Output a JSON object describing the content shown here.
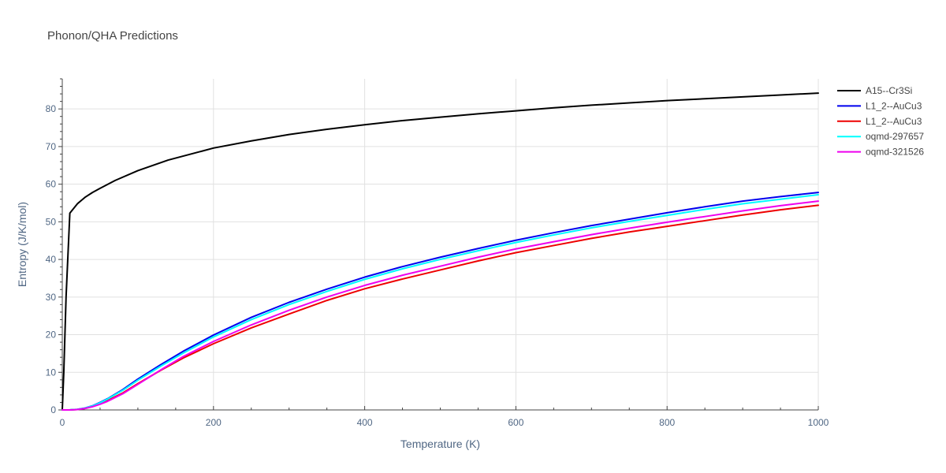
{
  "chart_data": {
    "type": "line",
    "title": "Phonon/QHA Predictions",
    "xlabel": "Temperature (K)",
    "ylabel": "Entropy (J/K/mol)",
    "xlim": [
      0,
      1000
    ],
    "ylim": [
      0,
      88
    ],
    "xticks": [
      "0",
      "200",
      "400",
      "600",
      "800",
      "1000"
    ],
    "yticks": [
      "0",
      "10",
      "20",
      "30",
      "40",
      "50",
      "60",
      "70",
      "80"
    ],
    "grid": true,
    "legend_position": "top-right",
    "series": [
      {
        "name": "A15--Cr3Si",
        "color": "#000000",
        "x": [
          0,
          2,
          5,
          10,
          20,
          30,
          40,
          50,
          70,
          100,
          140,
          200,
          250,
          300,
          350,
          400,
          450,
          500,
          550,
          600,
          650,
          700,
          750,
          800,
          850,
          900,
          950,
          1000
        ],
        "y": [
          0,
          10,
          30,
          52.3,
          54.8,
          56.5,
          57.8,
          58.9,
          61.0,
          63.6,
          66.4,
          69.6,
          71.5,
          73.2,
          74.6,
          75.8,
          76.9,
          77.8,
          78.7,
          79.5,
          80.3,
          81.0,
          81.6,
          82.2,
          82.7,
          83.2,
          83.7,
          84.2
        ]
      },
      {
        "name": "L1_2--AuCu3",
        "color": "#0000ee",
        "x": [
          0,
          10,
          20,
          30,
          40,
          50,
          60,
          80,
          100,
          130,
          160,
          200,
          250,
          300,
          350,
          400,
          450,
          500,
          550,
          600,
          650,
          700,
          750,
          800,
          850,
          900,
          950,
          1000
        ],
        "y": [
          0,
          0.02,
          0.15,
          0.5,
          1.1,
          2.0,
          3.0,
          5.4,
          8.2,
          12.0,
          15.6,
          19.9,
          24.6,
          28.6,
          32.1,
          35.3,
          38.1,
          40.6,
          42.9,
          45.1,
          47.1,
          49.0,
          50.7,
          52.4,
          54.0,
          55.5,
          56.7,
          57.8
        ]
      },
      {
        "name": "L1_2--AuCu3",
        "color": "#ee0000",
        "x": [
          0,
          10,
          20,
          30,
          40,
          50,
          60,
          80,
          100,
          130,
          160,
          200,
          250,
          300,
          350,
          400,
          450,
          500,
          550,
          600,
          650,
          700,
          750,
          800,
          850,
          900,
          950,
          1000
        ],
        "y": [
          0,
          0.01,
          0.1,
          0.4,
          0.9,
          1.6,
          2.5,
          4.5,
          7.0,
          10.5,
          13.8,
          17.6,
          21.8,
          25.5,
          29.1,
          32.2,
          34.8,
          37.2,
          39.6,
          41.8,
          43.7,
          45.6,
          47.3,
          48.8,
          50.3,
          51.8,
          53.2,
          54.4
        ]
      },
      {
        "name": "oqmd-297657",
        "color": "#00ffff",
        "x": [
          0,
          10,
          20,
          30,
          40,
          50,
          60,
          80,
          100,
          130,
          160,
          200,
          250,
          300,
          350,
          400,
          450,
          500,
          550,
          600,
          650,
          700,
          750,
          800,
          850,
          900,
          950,
          1000
        ],
        "y": [
          0,
          0.02,
          0.14,
          0.48,
          1.05,
          1.9,
          2.9,
          5.2,
          7.9,
          11.6,
          15.1,
          19.4,
          24.0,
          28.0,
          31.5,
          34.7,
          37.5,
          40.0,
          42.3,
          44.5,
          46.5,
          48.4,
          50.1,
          51.7,
          53.3,
          54.8,
          56.0,
          57.2
        ]
      },
      {
        "name": "oqmd-321526",
        "color": "#ee00ee",
        "x": [
          0,
          10,
          20,
          30,
          40,
          50,
          60,
          80,
          100,
          130,
          160,
          200,
          250,
          300,
          350,
          400,
          450,
          500,
          550,
          600,
          650,
          700,
          750,
          800,
          850,
          900,
          950,
          1000
        ],
        "y": [
          0,
          0.01,
          0.1,
          0.4,
          0.85,
          1.5,
          2.3,
          4.3,
          6.8,
          10.6,
          14.2,
          18.2,
          22.6,
          26.5,
          30.0,
          33.1,
          35.8,
          38.2,
          40.6,
          42.8,
          44.7,
          46.6,
          48.3,
          49.9,
          51.4,
          52.9,
          54.3,
          55.5
        ]
      }
    ]
  }
}
